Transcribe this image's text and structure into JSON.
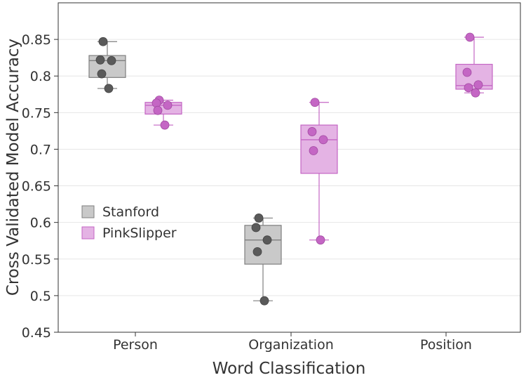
{
  "chart_data": {
    "type": "box",
    "xlabel": "Word Classification",
    "ylabel": "Cross Validated Model Accuracy",
    "ylim": [
      0.45,
      0.9
    ],
    "yticks": [
      0.45,
      0.5,
      0.55,
      0.6,
      0.65,
      0.7,
      0.75,
      0.8,
      0.85
    ],
    "ytick_labels": [
      "0.45",
      "0.5",
      "0.55",
      "0.6",
      "0.65",
      "0.7",
      "0.75",
      "0.8",
      "0.85"
    ],
    "categories": [
      "Person",
      "Organization",
      "Position"
    ],
    "grid": true,
    "legend_position": "left-middle",
    "series": [
      {
        "name": "Stanford",
        "color": "#7f7f7f",
        "fill": "#c9c9c9",
        "boxes": [
          {
            "category": "Person",
            "min": 0.783,
            "q1": 0.798,
            "median": 0.821,
            "q3": 0.828,
            "max": 0.847,
            "points": [
              0.847,
              0.822,
              0.821,
              0.803,
              0.783
            ]
          },
          {
            "category": "Organization",
            "min": 0.493,
            "q1": 0.543,
            "median": 0.576,
            "q3": 0.596,
            "max": 0.606,
            "points": [
              0.606,
              0.593,
              0.576,
              0.56,
              0.493
            ]
          }
        ]
      },
      {
        "name": "PinkSlipper",
        "color": "#c466c4",
        "fill": "#e4b3e4",
        "boxes": [
          {
            "category": "Person",
            "min": 0.733,
            "q1": 0.748,
            "median": 0.76,
            "q3": 0.764,
            "max": 0.767,
            "points": [
              0.767,
              0.763,
              0.76,
              0.753,
              0.733
            ]
          },
          {
            "category": "Organization",
            "min": 0.576,
            "q1": 0.667,
            "median": 0.713,
            "q3": 0.733,
            "max": 0.764,
            "points": [
              0.764,
              0.724,
              0.713,
              0.698,
              0.576
            ]
          },
          {
            "category": "Position",
            "min": 0.777,
            "q1": 0.782,
            "median": 0.787,
            "q3": 0.816,
            "max": 0.853,
            "points": [
              0.853,
              0.805,
              0.788,
              0.784,
              0.777
            ]
          }
        ]
      }
    ]
  }
}
